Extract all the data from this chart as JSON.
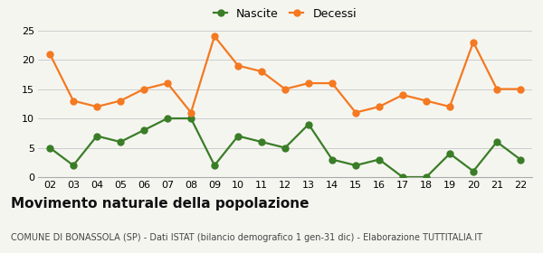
{
  "years": [
    "02",
    "03",
    "04",
    "05",
    "06",
    "07",
    "08",
    "09",
    "10",
    "11",
    "12",
    "13",
    "14",
    "15",
    "16",
    "17",
    "18",
    "19",
    "20",
    "21",
    "22"
  ],
  "nascite": [
    5,
    2,
    7,
    6,
    8,
    10,
    10,
    2,
    7,
    6,
    5,
    9,
    3,
    2,
    3,
    0,
    0,
    4,
    1,
    6,
    3
  ],
  "decessi": [
    21,
    13,
    12,
    13,
    15,
    16,
    11,
    24,
    19,
    18,
    15,
    16,
    16,
    11,
    12,
    14,
    13,
    12,
    23,
    15,
    15
  ],
  "nascite_color": "#3a7d27",
  "decessi_color": "#f47920",
  "title": "Movimento naturale della popolazione",
  "subtitle": "COMUNE DI BONASSOLA (SP) - Dati ISTAT (bilancio demografico 1 gen-31 dic) - Elaborazione TUTTITALIA.IT",
  "legend_nascite": "Nascite",
  "legend_decessi": "Decessi",
  "ylim": [
    0,
    25
  ],
  "yticks": [
    0,
    5,
    10,
    15,
    20,
    25
  ],
  "bg_color": "#f5f5f0",
  "grid_color": "#cccccc",
  "title_fontsize": 11,
  "subtitle_fontsize": 7,
  "tick_fontsize": 8,
  "legend_fontsize": 9,
  "marker_size": 5,
  "line_width": 1.6
}
